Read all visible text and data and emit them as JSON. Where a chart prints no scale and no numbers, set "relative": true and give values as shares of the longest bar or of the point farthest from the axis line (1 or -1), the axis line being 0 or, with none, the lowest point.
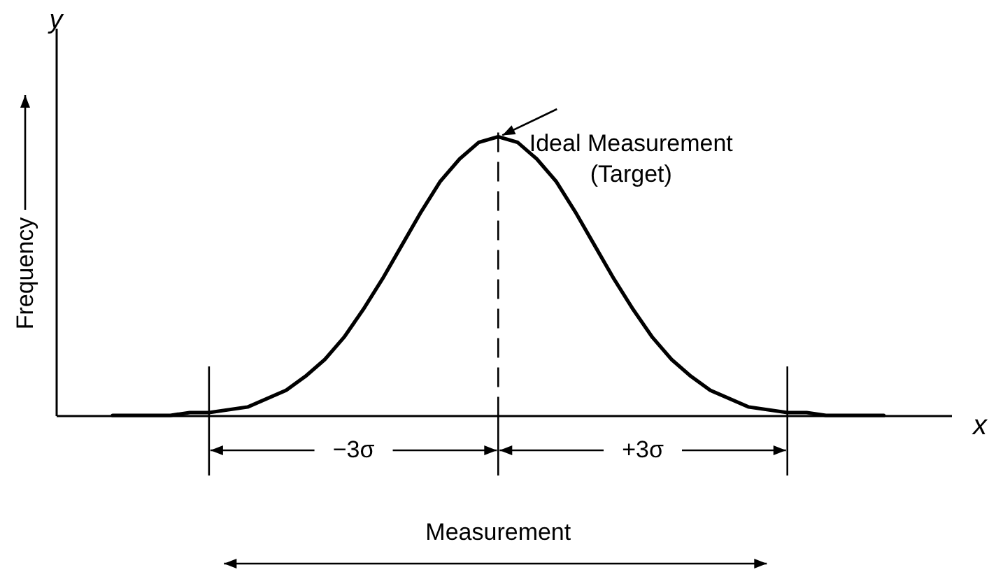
{
  "chart_data": {
    "type": "line",
    "xlabel": "x",
    "ylabel": "Frequency",
    "relative": true,
    "color": "#000000",
    "categories": [
      null,
      null,
      null,
      null,
      null,
      null,
      null,
      null,
      null,
      null,
      null,
      null,
      null,
      null,
      null,
      null,
      null,
      null,
      null,
      null,
      null,
      null,
      null,
      null,
      null,
      null,
      null,
      null,
      null,
      null,
      null,
      null,
      null,
      null,
      null,
      null,
      null,
      null,
      null,
      null,
      null
    ],
    "values": [
      0,
      0,
      0,
      0,
      0.01,
      0.01,
      0.02,
      0.03,
      0.06,
      0.09,
      0.14,
      0.2,
      0.28,
      0.38,
      0.49,
      0.61,
      0.73,
      0.84,
      0.92,
      0.98,
      1,
      0.98,
      0.92,
      0.84,
      0.73,
      0.61,
      0.49,
      0.38,
      0.28,
      0.2,
      0.14,
      0.09,
      0.06,
      0.03,
      0.02,
      0.01,
      0.01,
      0,
      0,
      0,
      0
    ],
    "annotations": [
      "y",
      "Ideal Measurement\n(Target)",
      "−3σ",
      "+3σ",
      "Measurement"
    ]
  }
}
